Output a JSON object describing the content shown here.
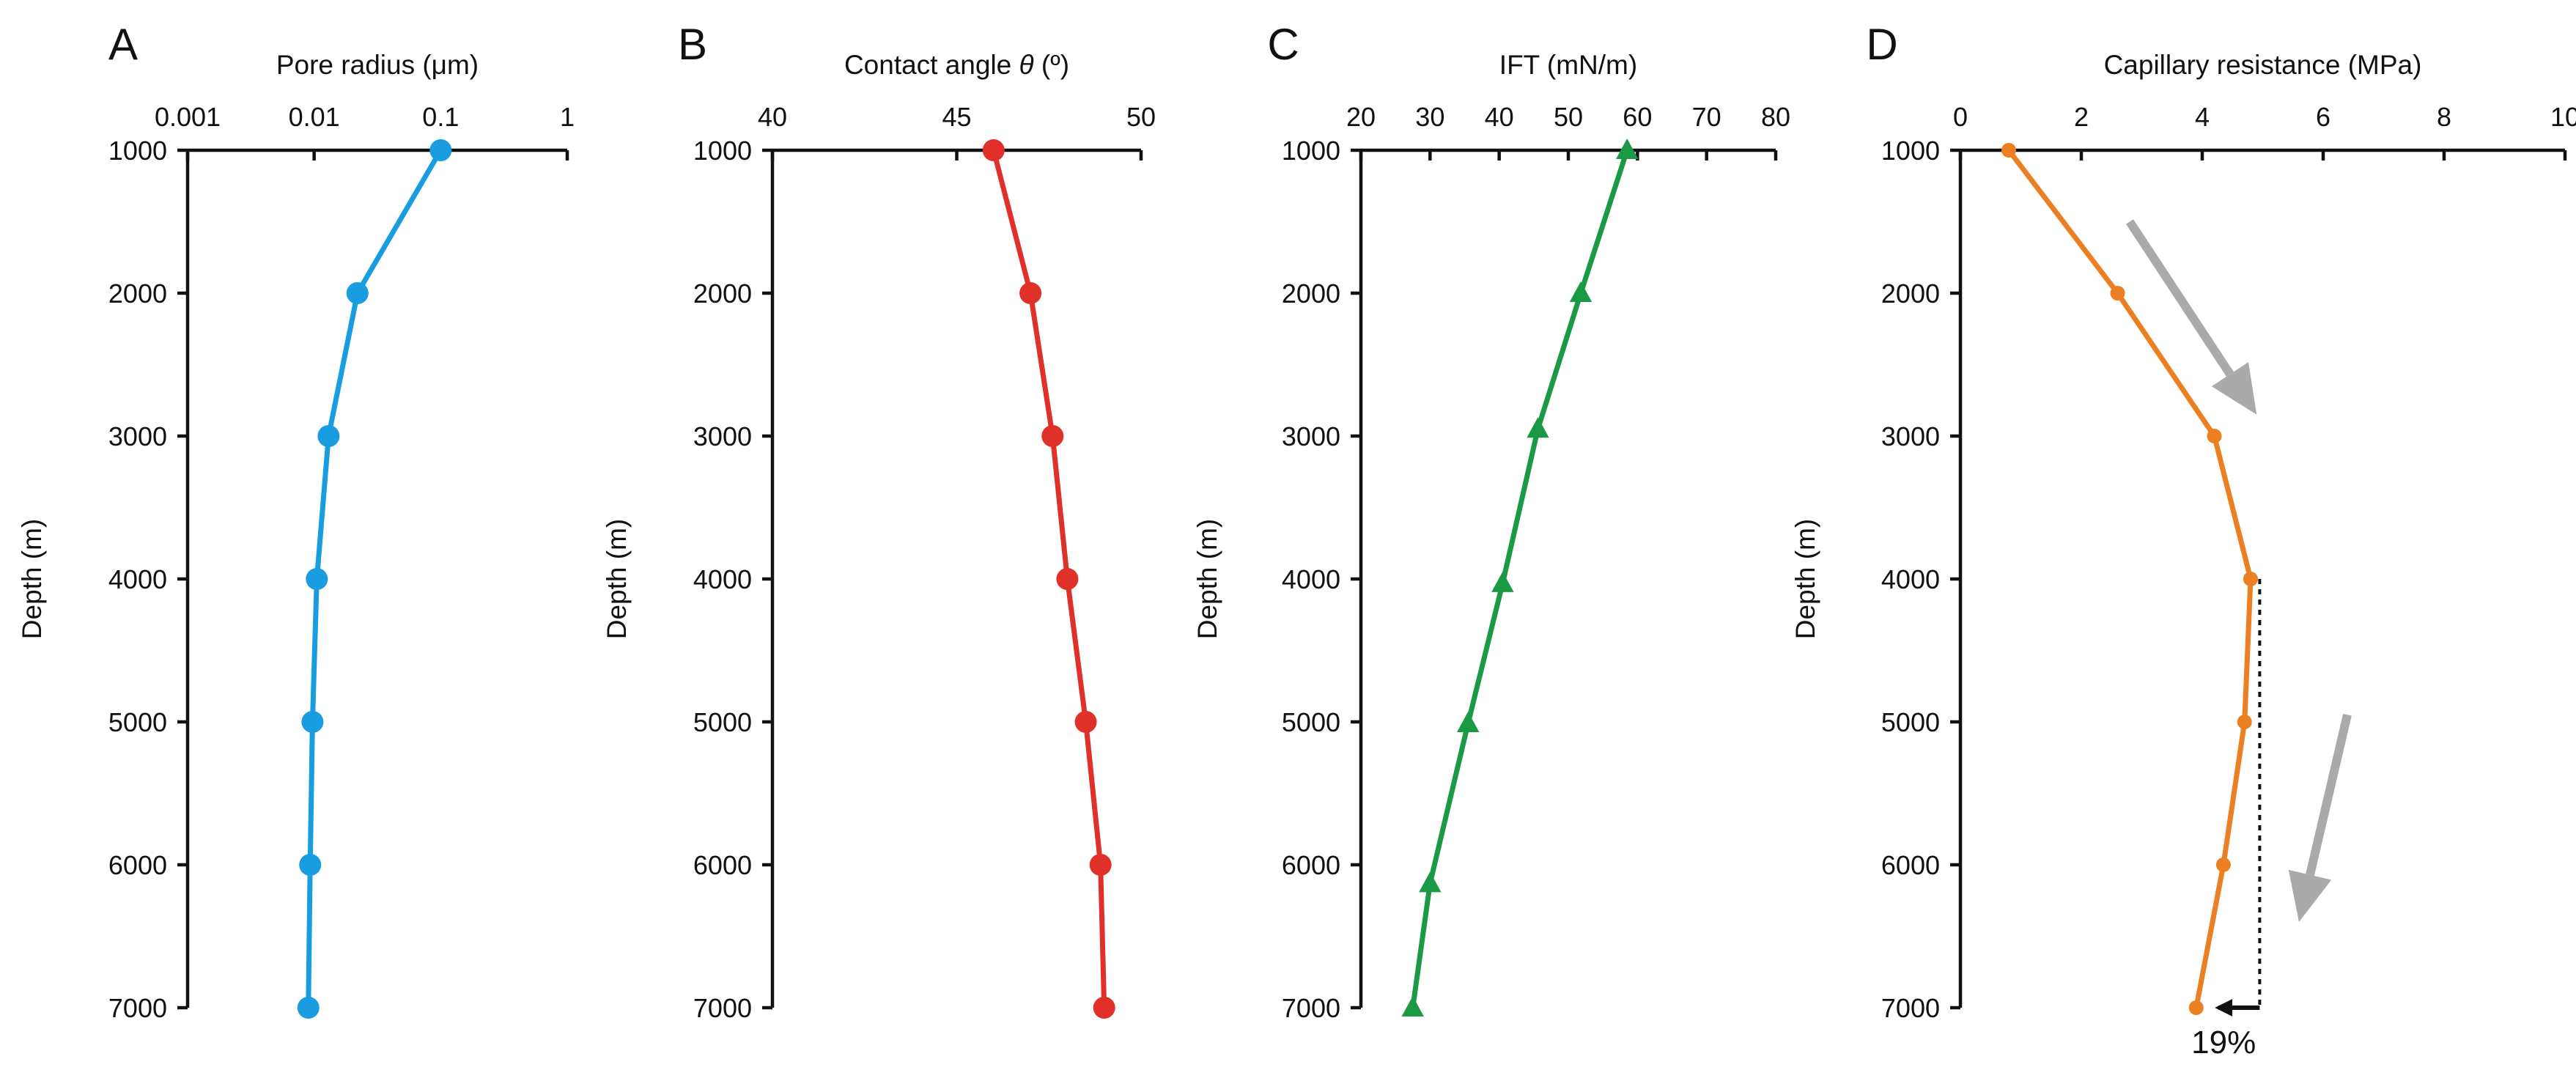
{
  "chart_data": [
    {
      "panel_label": "A",
      "type": "line",
      "title": "Pore radius (μm)",
      "xlabel": "Pore radius (μm)",
      "ylabel": "Depth (m)",
      "x_scale": "log",
      "xlim": [
        0.001,
        1
      ],
      "x_ticks": [
        0.001,
        0.01,
        0.1,
        1
      ],
      "x_tick_labels": [
        "0.001",
        "0.01",
        "0.1",
        "1"
      ],
      "ylim": [
        1000,
        7000
      ],
      "y_ticks": [
        1000,
        2000,
        3000,
        4000,
        5000,
        6000,
        7000
      ],
      "y_tick_labels": [
        "1000",
        "2000",
        "3000",
        "4000",
        "5000",
        "6000",
        "7000"
      ],
      "series": [
        {
          "name": "Pore radius",
          "color": "#1a9de0",
          "marker": "circle",
          "x": [
            0.1,
            0.022,
            0.013,
            0.0105,
            0.0097,
            0.0093,
            0.009
          ],
          "y": [
            1000,
            2000,
            3000,
            4000,
            5000,
            6000,
            7000
          ]
        }
      ]
    },
    {
      "panel_label": "B",
      "type": "line",
      "title": "Contact angle θ (º)",
      "title_parts": [
        "Contact angle ",
        "θ",
        " (º)"
      ],
      "xlabel": "Contact angle θ (º)",
      "ylabel": "Depth (m)",
      "x_scale": "linear",
      "xlim": [
        40,
        50
      ],
      "x_ticks": [
        40,
        45,
        50
      ],
      "x_tick_labels": [
        "40",
        "45",
        "50"
      ],
      "ylim": [
        1000,
        7000
      ],
      "y_ticks": [
        1000,
        2000,
        3000,
        4000,
        5000,
        6000,
        7000
      ],
      "y_tick_labels": [
        "1000",
        "2000",
        "3000",
        "4000",
        "5000",
        "6000",
        "7000"
      ],
      "series": [
        {
          "name": "Contact angle",
          "color": "#e0302a",
          "marker": "circle",
          "x": [
            46.0,
            47.0,
            47.6,
            48.0,
            48.5,
            48.9,
            49.0
          ],
          "y": [
            1000,
            2000,
            3000,
            4000,
            5000,
            6000,
            7000
          ]
        }
      ]
    },
    {
      "panel_label": "C",
      "type": "line",
      "title": "IFT (mN/m)",
      "xlabel": "IFT (mN/m)",
      "ylabel": "Depth (m)",
      "x_scale": "linear",
      "xlim": [
        20,
        80
      ],
      "x_ticks": [
        20,
        30,
        40,
        50,
        60,
        70,
        80
      ],
      "x_tick_labels": [
        "20",
        "30",
        "40",
        "50",
        "60",
        "70",
        "80"
      ],
      "ylim": [
        1000,
        7000
      ],
      "y_ticks": [
        1000,
        2000,
        3000,
        4000,
        5000,
        6000,
        7000
      ],
      "y_tick_labels": [
        "1000",
        "2000",
        "3000",
        "4000",
        "5000",
        "6000",
        "7000"
      ],
      "series": [
        {
          "name": "IFT",
          "color": "#1a9a44",
          "marker": "triangle",
          "x": [
            58.5,
            51.8,
            45.6,
            40.5,
            35.5,
            30.0,
            27.5
          ],
          "y": [
            1000,
            2000,
            2950,
            4030,
            5010,
            6130,
            7000
          ]
        }
      ]
    },
    {
      "panel_label": "D",
      "type": "line",
      "title": "Capillary resistance (MPa)",
      "xlabel": "Capillary resistance (MPa)",
      "ylabel": "Depth (m)",
      "x_scale": "linear",
      "xlim": [
        0,
        10
      ],
      "x_ticks": [
        0,
        2,
        4,
        6,
        8,
        10
      ],
      "x_tick_labels": [
        "0",
        "2",
        "4",
        "6",
        "8",
        "10"
      ],
      "ylim": [
        1000,
        7000
      ],
      "y_ticks": [
        1000,
        2000,
        3000,
        4000,
        5000,
        6000,
        7000
      ],
      "y_tick_labels": [
        "1000",
        "2000",
        "3000",
        "4000",
        "5000",
        "6000",
        "7000"
      ],
      "series": [
        {
          "name": "Capillary resistance",
          "color": "#ec7f22",
          "marker": "circle",
          "x": [
            0.8,
            2.6,
            4.2,
            4.8,
            4.7,
            4.35,
            3.9
          ],
          "y": [
            1000,
            2000,
            3000,
            4000,
            5000,
            6000,
            7000
          ]
        }
      ],
      "annotations": {
        "reference_line": {
          "x": 4.95,
          "y_from": 4000,
          "y_to": 7000,
          "style": "dotted",
          "color": "#111111"
        },
        "reduction_arrow": {
          "x_from": 4.95,
          "x_to": 4.0,
          "y": 7000,
          "color": "#111111"
        },
        "percent_label": "19%",
        "trend_arrows": [
          {
            "x_from": 2.8,
            "y_from": 1500,
            "x_to": 4.9,
            "y_to": 2850,
            "color": "#aaaaaa"
          },
          {
            "x_from": 6.4,
            "y_from": 4950,
            "x_to": 5.6,
            "y_to": 6400,
            "color": "#aaaaaa"
          }
        ]
      }
    }
  ]
}
